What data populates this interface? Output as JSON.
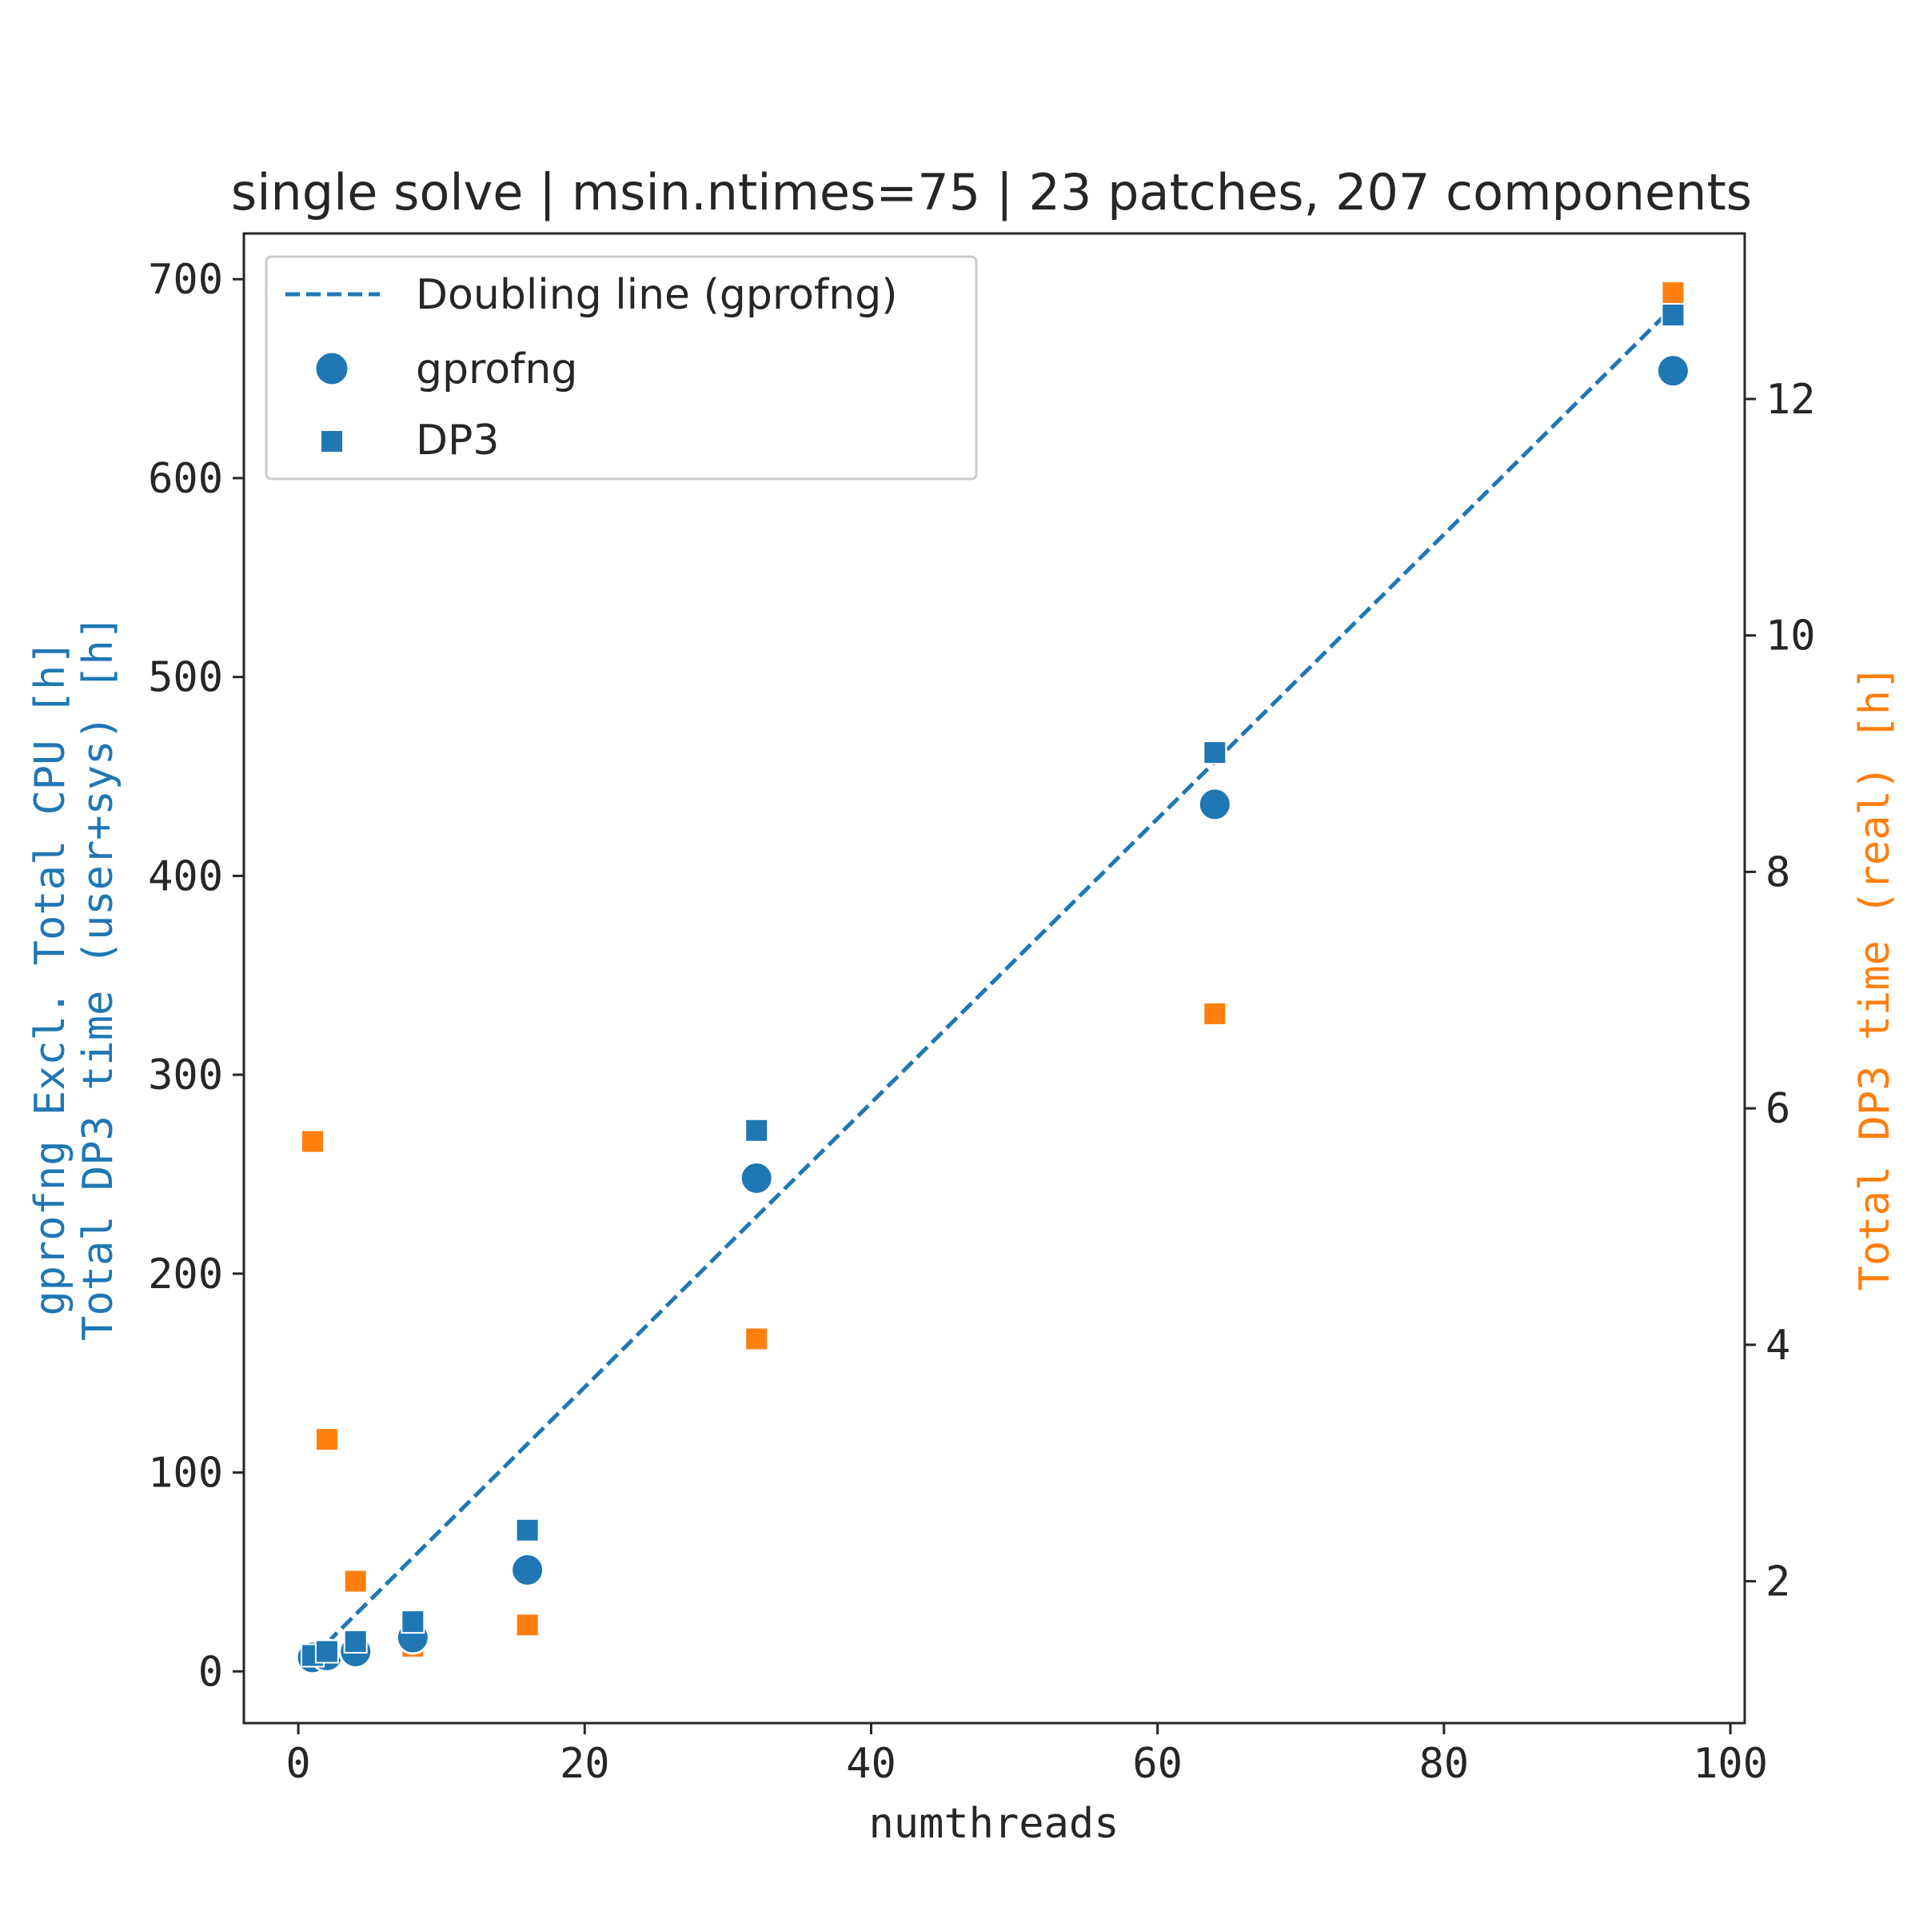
{
  "colors": {
    "primary": "#1f77b4",
    "secondary": "#ff7f0e",
    "text": "#262626",
    "axis": "#262626"
  },
  "chart_data": {
    "type": "scatter",
    "title": "single solve | msin.ntimes=75 | 23 patches, 207 components",
    "xlabel": "numthreads",
    "ylabel_left_line1": "gprofng Excl. Total CPU [h]",
    "ylabel_left_line2": "Total DP3 time (user+sys) [h]",
    "ylabel_right": "Total DP3 time (real) [h]",
    "xlim": [
      -3.8,
      101
    ],
    "ylim_left": [
      -26,
      723
    ],
    "ylim_right": [
      0.8,
      13.4
    ],
    "xticks": [
      0,
      20,
      40,
      60,
      80,
      100
    ],
    "yticks_left": [
      0,
      100,
      200,
      300,
      400,
      500,
      600,
      700
    ],
    "yticks_right": [
      2,
      4,
      6,
      8,
      10,
      12
    ],
    "legend_position": "upper left",
    "series": [
      {
        "name": "Doubling line (gprofng)",
        "kind": "line",
        "style": "dashed",
        "axis": "left",
        "x": [
          2,
          96
        ],
        "y": [
          14.3,
          686
        ]
      },
      {
        "name": "gprofng",
        "kind": "scatter",
        "marker": "circle",
        "axis": "left",
        "x": [
          1,
          2,
          4,
          8,
          16,
          32,
          64,
          96
        ],
        "y": [
          7,
          8,
          10,
          17,
          51,
          248,
          436,
          654
        ]
      },
      {
        "name": "DP3",
        "kind": "scatter",
        "marker": "square",
        "axis": "left",
        "x": [
          1,
          2,
          4,
          8,
          16,
          32,
          64,
          96
        ],
        "y": [
          8,
          10,
          15,
          25,
          71,
          272,
          462,
          682
        ]
      },
      {
        "kind": "scatter",
        "marker": "square",
        "axis": "right",
        "x": [
          1,
          2,
          4,
          8,
          16,
          32,
          64,
          96
        ],
        "y": [
          5.72,
          3.2,
          2.0,
          1.45,
          1.63,
          4.05,
          6.8,
          12.9
        ]
      }
    ]
  }
}
